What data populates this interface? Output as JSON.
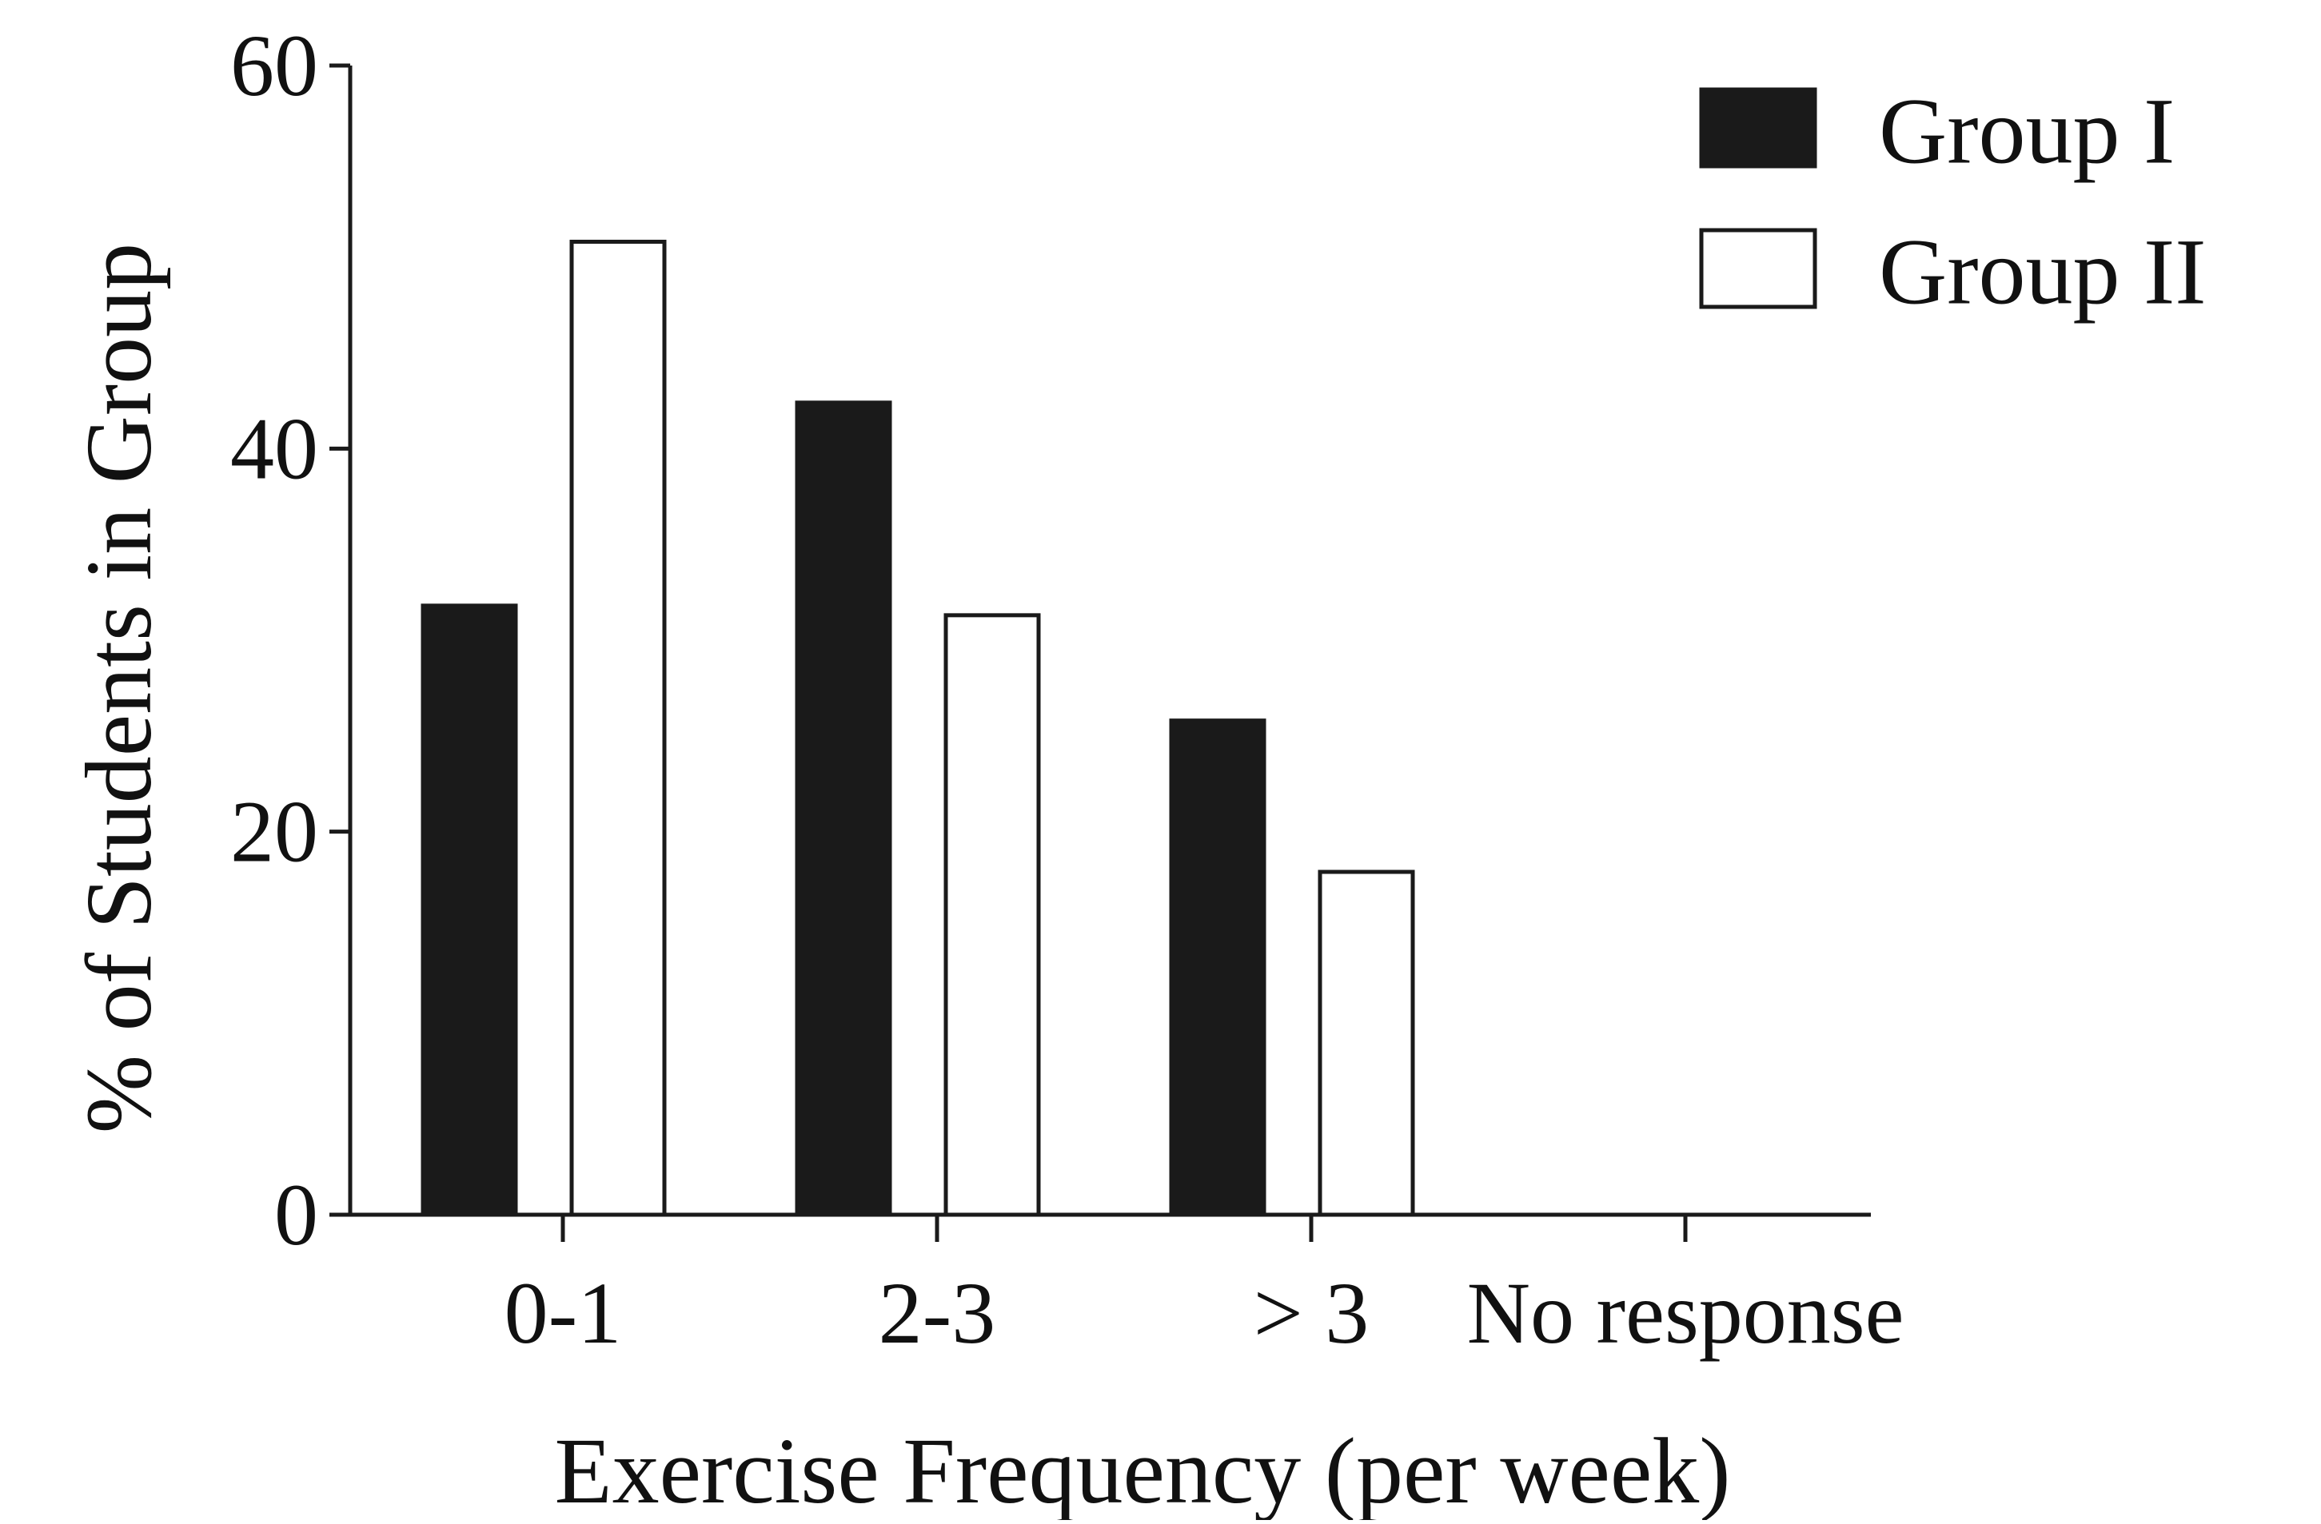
{
  "chart_data": {
    "type": "bar",
    "title": "",
    "xlabel": "Exercise Frequency (per week)",
    "ylabel": "% of Students in Group",
    "categories": [
      "0-1",
      "2-3",
      "> 3",
      "No response"
    ],
    "series": [
      {
        "name": "Group I",
        "values": [
          31.8,
          42.4,
          25.8,
          0
        ],
        "fill": "#1a1a1a"
      },
      {
        "name": "Group II",
        "values": [
          50.8,
          31.3,
          17.9,
          0
        ],
        "fill": "#ffffff"
      }
    ],
    "ylim": [
      0,
      60
    ],
    "yticks": [
      "0",
      "20",
      "40",
      "60"
    ],
    "grid": false,
    "legend_position": "top-right",
    "bar_stroke": "#1a1a1a"
  }
}
